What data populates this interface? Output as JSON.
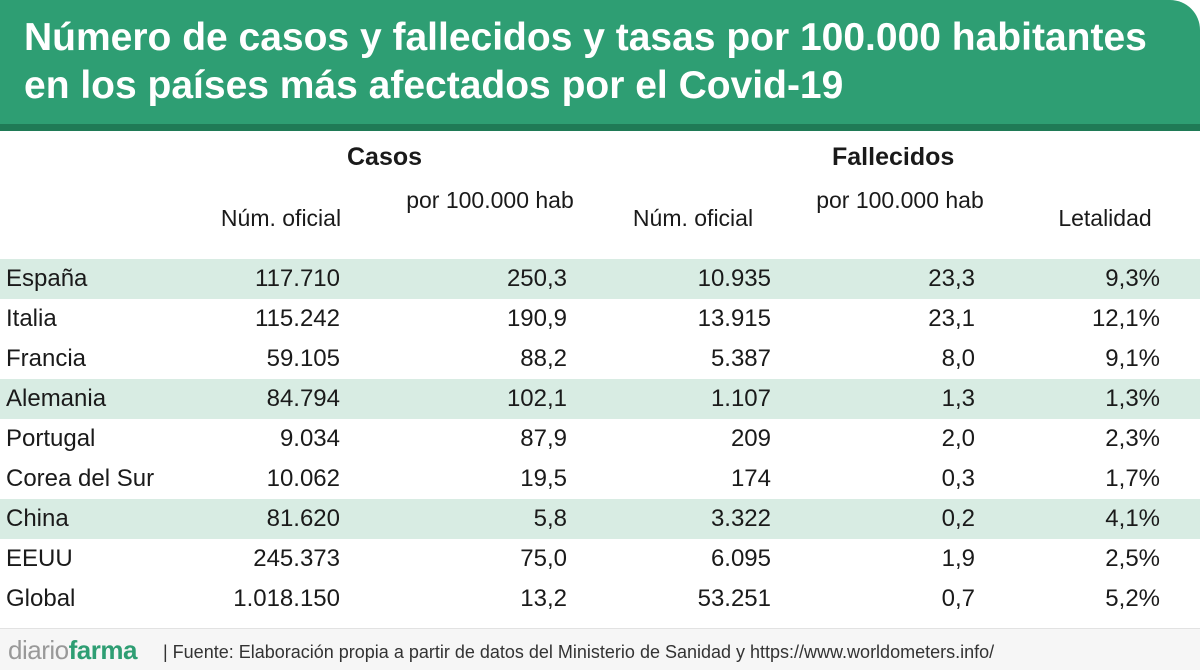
{
  "title": "Número de casos y fallecidos y tasas por 100.000 habitantes en los países más afectados por el Covid-19",
  "groups": {
    "casos": "Casos",
    "fallecidos": "Fallecidos"
  },
  "columns": {
    "casos_oficial": "Núm. oficial",
    "casos_tasa": "por 100.000 hab",
    "fallecidos_oficial": "Núm. oficial",
    "fallecidos_tasa": "por 100.000 hab",
    "letalidad": "Letalidad"
  },
  "rows": [
    {
      "pais": "España",
      "casos": "117.710",
      "casos_tasa": "250,3",
      "fallecidos": "10.935",
      "fallecidos_tasa": "23,3",
      "letalidad": "9,3%",
      "shaded": true
    },
    {
      "pais": "Italia",
      "casos": "115.242",
      "casos_tasa": "190,9",
      "fallecidos": "13.915",
      "fallecidos_tasa": "23,1",
      "letalidad": "12,1%",
      "shaded": false
    },
    {
      "pais": "Francia",
      "casos": "59.105",
      "casos_tasa": "88,2",
      "fallecidos": "5.387",
      "fallecidos_tasa": "8,0",
      "letalidad": "9,1%",
      "shaded": false
    },
    {
      "pais": "Alemania",
      "casos": "84.794",
      "casos_tasa": "102,1",
      "fallecidos": "1.107",
      "fallecidos_tasa": "1,3",
      "letalidad": "1,3%",
      "shaded": true
    },
    {
      "pais": "Portugal",
      "casos": "9.034",
      "casos_tasa": "87,9",
      "fallecidos": "209",
      "fallecidos_tasa": "2,0",
      "letalidad": "2,3%",
      "shaded": false
    },
    {
      "pais": "Corea del Sur",
      "casos": "10.062",
      "casos_tasa": "19,5",
      "fallecidos": "174",
      "fallecidos_tasa": "0,3",
      "letalidad": "1,7%",
      "shaded": false
    },
    {
      "pais": "China",
      "casos": "81.620",
      "casos_tasa": "5,8",
      "fallecidos": "3.322",
      "fallecidos_tasa": "0,2",
      "letalidad": "4,1%",
      "shaded": true
    },
    {
      "pais": "EEUU",
      "casos": "245.373",
      "casos_tasa": "75,0",
      "fallecidos": "6.095",
      "fallecidos_tasa": "1,9",
      "letalidad": "2,5%",
      "shaded": false
    },
    {
      "pais": "Global",
      "casos": "1.018.150",
      "casos_tasa": "13,2",
      "fallecidos": "53.251",
      "fallecidos_tasa": "0,7",
      "letalidad": "5,2%",
      "shaded": false
    }
  ],
  "footer": {
    "logo_light": "diario",
    "logo_bold": "farma",
    "source": "| Fuente: Elaboración propia a partir de datos del Ministerio de Sanidad y https://www.worldometers.info/"
  },
  "colors": {
    "header": "#2e9e73",
    "band": "#1f7a56",
    "row_shade": "#d8ece3"
  }
}
